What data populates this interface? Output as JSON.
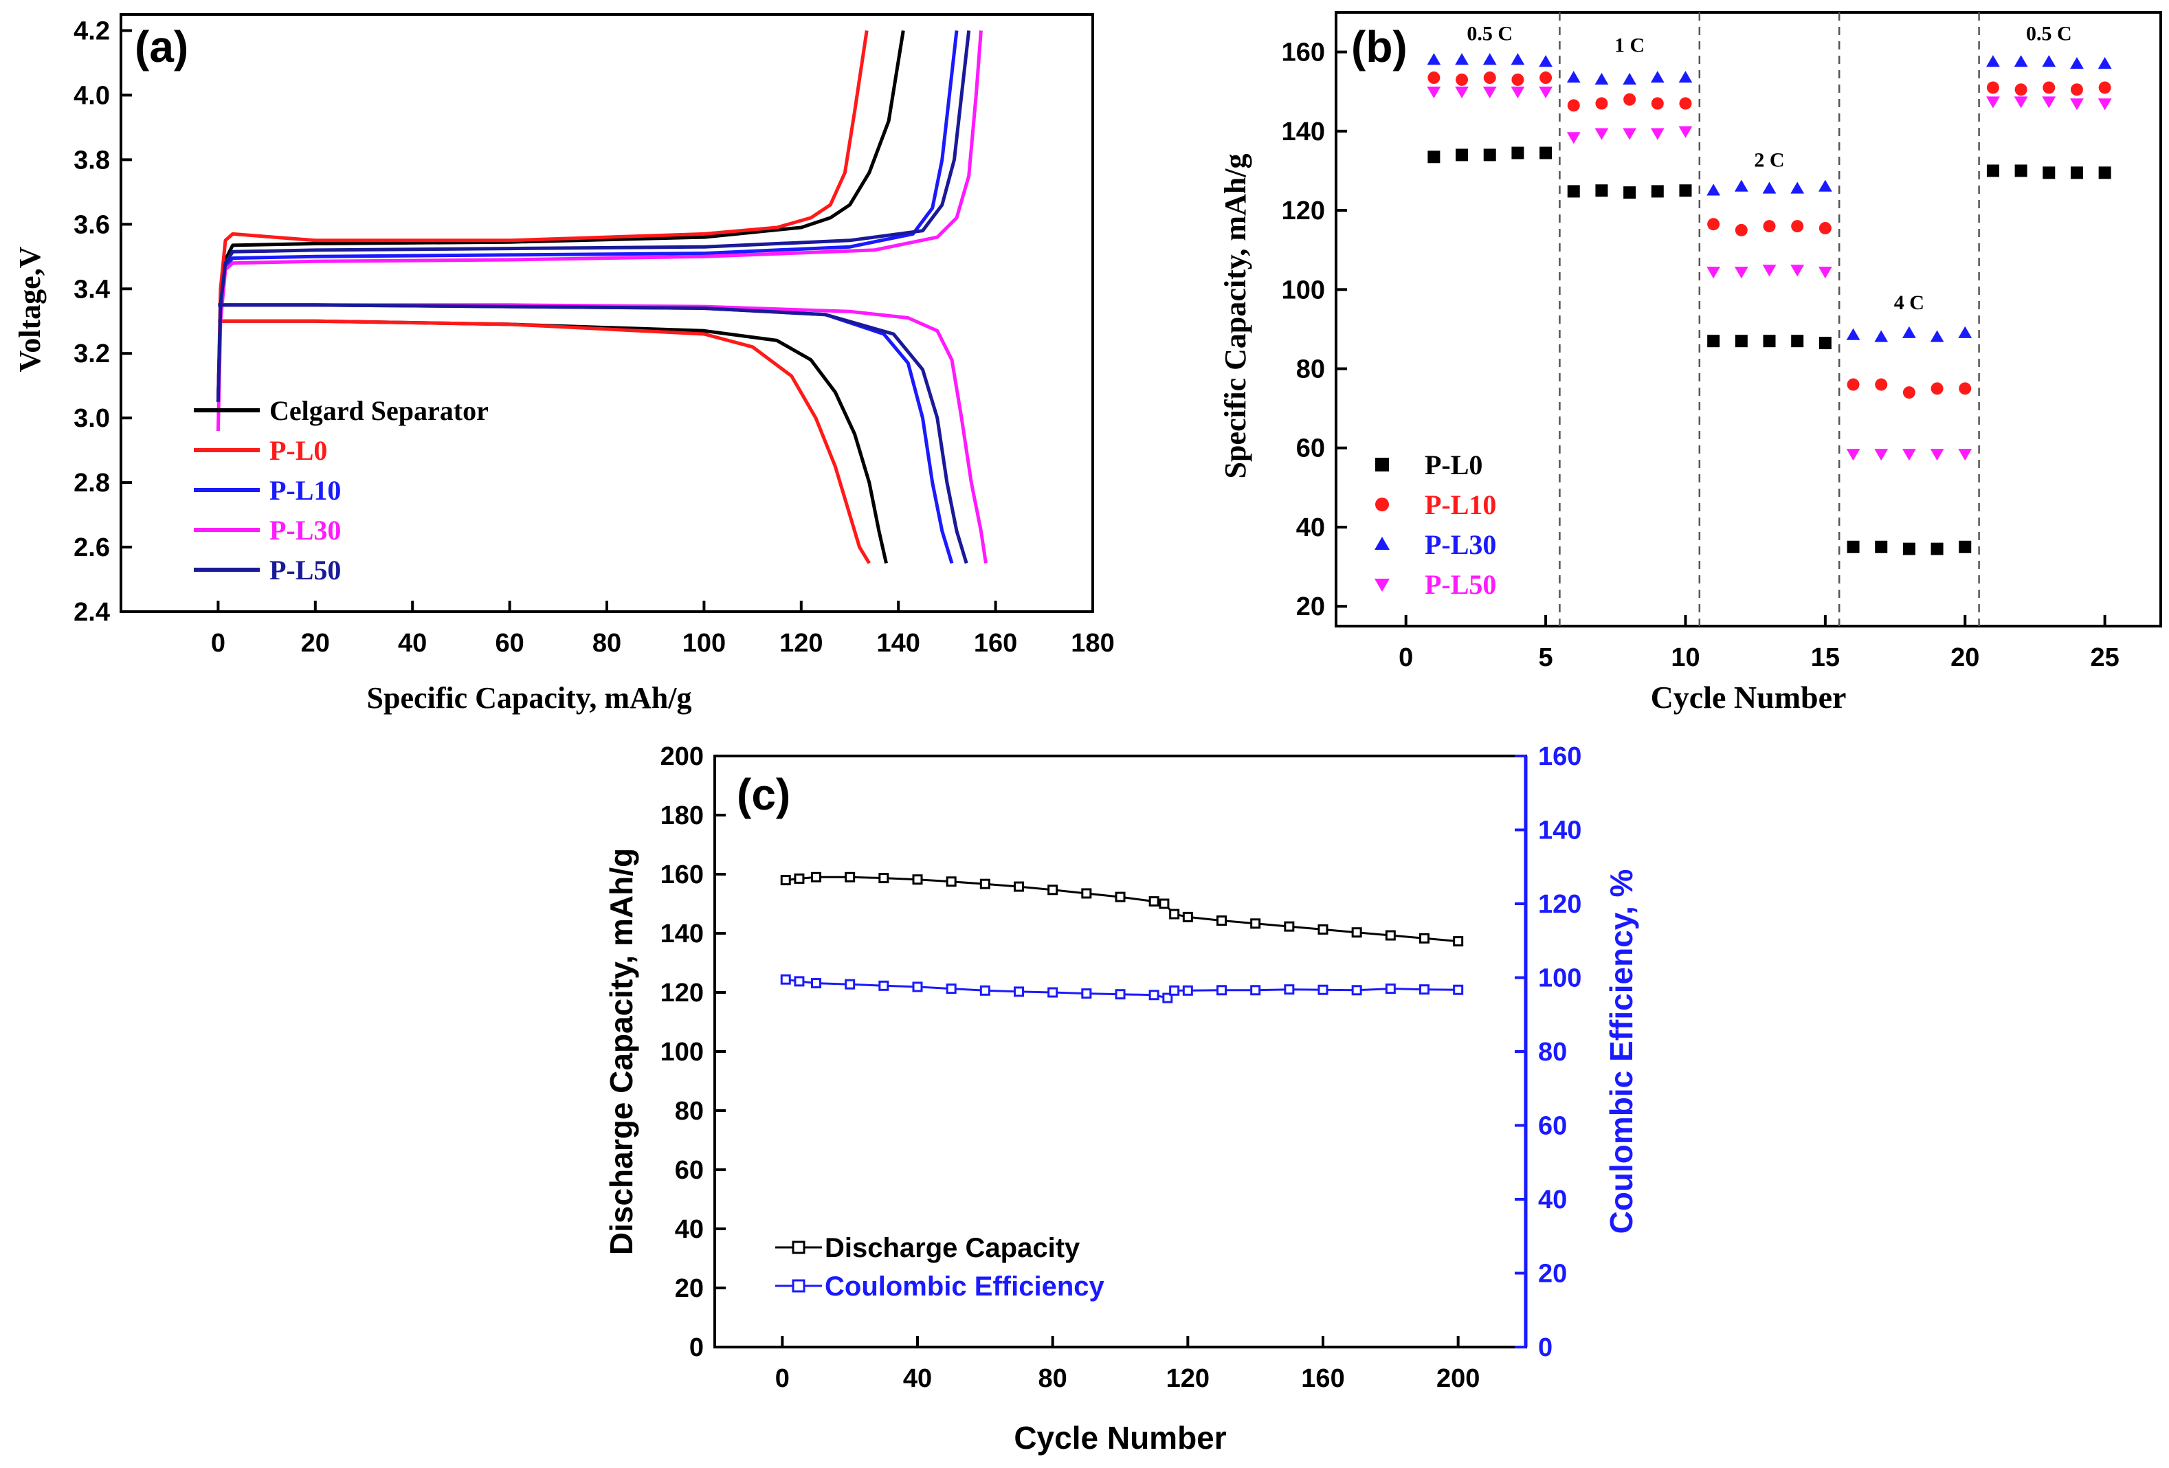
{
  "chart_data": [
    {
      "panel_label": "(a)",
      "type": "line",
      "xlabel": "Specific Capacity, mAh/g",
      "ylabel": "Voltage,V",
      "xlim": [
        -20,
        180
      ],
      "ylim": [
        2.4,
        4.25
      ],
      "xticks": [
        0,
        20,
        40,
        60,
        80,
        100,
        120,
        140,
        160,
        180
      ],
      "yticks": [
        2.4,
        2.6,
        2.8,
        3.0,
        3.2,
        3.4,
        3.6,
        3.8,
        4.0,
        4.2
      ],
      "legend_position": "bottom-left",
      "series": [
        {
          "name": "Celgard Separator",
          "color": "#000000",
          "charge": [
            [
              0,
              3.05
            ],
            [
              0.5,
              3.35
            ],
            [
              1.5,
              3.49
            ],
            [
              3,
              3.535
            ],
            [
              20,
              3.54
            ],
            [
              60,
              3.545
            ],
            [
              100,
              3.56
            ],
            [
              120,
              3.59
            ],
            [
              126,
              3.62
            ],
            [
              130,
              3.66
            ],
            [
              134,
              3.76
            ],
            [
              138,
              3.92
            ],
            [
              141,
              4.2
            ]
          ],
          "discharge": [
            [
              0,
              3.3
            ],
            [
              20,
              3.3
            ],
            [
              60,
              3.29
            ],
            [
              100,
              3.27
            ],
            [
              115,
              3.24
            ],
            [
              122,
              3.18
            ],
            [
              127,
              3.08
            ],
            [
              131,
              2.95
            ],
            [
              134,
              2.8
            ],
            [
              136,
              2.65
            ],
            [
              137.5,
              2.55
            ]
          ]
        },
        {
          "name": "P-L0",
          "color": "#ff1a1a",
          "charge": [
            [
              0,
              3.05
            ],
            [
              0.5,
              3.4
            ],
            [
              1.5,
              3.55
            ],
            [
              3,
              3.57
            ],
            [
              20,
              3.55
            ],
            [
              60,
              3.55
            ],
            [
              100,
              3.57
            ],
            [
              115,
              3.59
            ],
            [
              122,
              3.62
            ],
            [
              126,
              3.66
            ],
            [
              129,
              3.76
            ],
            [
              131,
              3.95
            ],
            [
              133.5,
              4.2
            ]
          ],
          "discharge": [
            [
              0,
              3.3
            ],
            [
              20,
              3.3
            ],
            [
              60,
              3.29
            ],
            [
              100,
              3.26
            ],
            [
              110,
              3.22
            ],
            [
              118,
              3.13
            ],
            [
              123,
              3.0
            ],
            [
              127,
              2.85
            ],
            [
              130,
              2.7
            ],
            [
              132,
              2.6
            ],
            [
              134,
              2.55
            ]
          ]
        },
        {
          "name": "P-L10",
          "color": "#1a1aff",
          "charge": [
            [
              0,
              3.05
            ],
            [
              0.5,
              3.35
            ],
            [
              1.5,
              3.47
            ],
            [
              3,
              3.495
            ],
            [
              20,
              3.5
            ],
            [
              60,
              3.505
            ],
            [
              100,
              3.51
            ],
            [
              130,
              3.53
            ],
            [
              143,
              3.57
            ],
            [
              147,
              3.65
            ],
            [
              149,
              3.8
            ],
            [
              150.5,
              4.0
            ],
            [
              152,
              4.2
            ]
          ],
          "discharge": [
            [
              0,
              3.35
            ],
            [
              20,
              3.35
            ],
            [
              60,
              3.345
            ],
            [
              100,
              3.34
            ],
            [
              125,
              3.32
            ],
            [
              137,
              3.26
            ],
            [
              142,
              3.17
            ],
            [
              145,
              3.0
            ],
            [
              147,
              2.8
            ],
            [
              149,
              2.65
            ],
            [
              151,
              2.55
            ]
          ]
        },
        {
          "name": "P-L30",
          "color": "#ff1aff",
          "charge": [
            [
              0,
              2.96
            ],
            [
              0.5,
              3.3
            ],
            [
              1.5,
              3.46
            ],
            [
              3,
              3.48
            ],
            [
              20,
              3.485
            ],
            [
              60,
              3.49
            ],
            [
              100,
              3.5
            ],
            [
              135,
              3.52
            ],
            [
              148,
              3.56
            ],
            [
              152,
              3.62
            ],
            [
              154.5,
              3.75
            ],
            [
              156,
              4.0
            ],
            [
              157,
              4.2
            ]
          ],
          "discharge": [
            [
              0,
              3.35
            ],
            [
              20,
              3.35
            ],
            [
              60,
              3.35
            ],
            [
              100,
              3.345
            ],
            [
              130,
              3.33
            ],
            [
              142,
              3.31
            ],
            [
              148,
              3.27
            ],
            [
              151,
              3.18
            ],
            [
              153,
              3.0
            ],
            [
              155,
              2.8
            ],
            [
              157,
              2.65
            ],
            [
              158,
              2.55
            ]
          ]
        },
        {
          "name": "P-L50",
          "color": "#1a1a99",
          "charge": [
            [
              0,
              3.05
            ],
            [
              0.5,
              3.35
            ],
            [
              1.5,
              3.48
            ],
            [
              3,
              3.515
            ],
            [
              20,
              3.52
            ],
            [
              60,
              3.525
            ],
            [
              100,
              3.53
            ],
            [
              130,
              3.55
            ],
            [
              145,
              3.58
            ],
            [
              149,
              3.66
            ],
            [
              151.5,
              3.8
            ],
            [
              153,
              4.0
            ],
            [
              154.5,
              4.2
            ]
          ],
          "discharge": [
            [
              0,
              3.35
            ],
            [
              20,
              3.35
            ],
            [
              60,
              3.345
            ],
            [
              100,
              3.34
            ],
            [
              125,
              3.32
            ],
            [
              139,
              3.26
            ],
            [
              145,
              3.15
            ],
            [
              148,
              3.0
            ],
            [
              150,
              2.8
            ],
            [
              152,
              2.65
            ],
            [
              154,
              2.55
            ]
          ]
        }
      ]
    },
    {
      "panel_label": "(b)",
      "type": "scatter",
      "xlabel": "Cycle Number",
      "ylabel": "Specific Capacity, mAh/g",
      "xlim": [
        -2.5,
        27
      ],
      "ylim": [
        15,
        170
      ],
      "xticks": [
        0,
        5,
        10,
        15,
        20,
        25
      ],
      "yticks": [
        20,
        40,
        60,
        80,
        100,
        120,
        140,
        160
      ],
      "dividers": [
        5.5,
        10.5,
        15.5,
        20.5
      ],
      "rate_labels": [
        {
          "text": "0.5 C",
          "x": 3,
          "y": 163
        },
        {
          "text": "1 C",
          "x": 8,
          "y": 160
        },
        {
          "text": "2 C",
          "x": 13,
          "y": 131
        },
        {
          "text": "4 C",
          "x": 18,
          "y": 95
        },
        {
          "text": "0.5 C",
          "x": 23,
          "y": 163
        }
      ],
      "legend_position": "bottom-left",
      "x": [
        1,
        2,
        3,
        4,
        5,
        6,
        7,
        8,
        9,
        10,
        11,
        12,
        13,
        14,
        15,
        16,
        17,
        18,
        19,
        20,
        21,
        22,
        23,
        24,
        25
      ],
      "series": [
        {
          "name": "P-L0",
          "color": "#000000",
          "marker": "square",
          "values": [
            133.5,
            134,
            134,
            134.5,
            134.5,
            124.8,
            125,
            124.5,
            124.8,
            125,
            87,
            87,
            87,
            87,
            86.5,
            35,
            35,
            34.5,
            34.5,
            35,
            130,
            130,
            129.5,
            129.5,
            129.5
          ]
        },
        {
          "name": "P-L10",
          "color": "#ff1a1a",
          "marker": "circle",
          "values": [
            153.5,
            153,
            153.5,
            153,
            153.5,
            146.5,
            147,
            148,
            147,
            147,
            116.5,
            115,
            116,
            116,
            115.5,
            76,
            76,
            74,
            75,
            75,
            151,
            150.5,
            151,
            150.5,
            151
          ]
        },
        {
          "name": "P-L30",
          "color": "#1a1aff",
          "marker": "triangle-up",
          "values": [
            158,
            158,
            158,
            158,
            157.5,
            153.5,
            153,
            153,
            153.5,
            153.5,
            125,
            126,
            125.5,
            125.5,
            126,
            88.5,
            88,
            89,
            88,
            89,
            157.5,
            157.5,
            157.5,
            157,
            157
          ]
        },
        {
          "name": "P-L50",
          "color": "#ff1aff",
          "marker": "triangle-down",
          "values": [
            150,
            150,
            150,
            150,
            150,
            138.5,
            139.5,
            139.5,
            139.5,
            140,
            104.5,
            104.5,
            105,
            105,
            104.5,
            58.5,
            58.5,
            58.5,
            58.5,
            58.5,
            147.5,
            147.5,
            147.5,
            147,
            147
          ]
        }
      ]
    },
    {
      "panel_label": "(c)",
      "type": "line",
      "xlabel": "Cycle Number",
      "ylabel_left": "Discharge Capacity, mAh/g",
      "ylabel_right": "Coulombic Efficiency, %",
      "xlim": [
        -20,
        220
      ],
      "ylim_left": [
        0,
        200
      ],
      "ylim_right": [
        0,
        160
      ],
      "xticks": [
        0,
        40,
        80,
        120,
        160,
        200
      ],
      "yticks_left": [
        0,
        20,
        40,
        60,
        80,
        100,
        120,
        140,
        160,
        180,
        200
      ],
      "yticks_right": [
        0,
        20,
        40,
        60,
        80,
        100,
        120,
        140,
        160
      ],
      "legend_position": "bottom-left",
      "series": [
        {
          "name": "Discharge Capacity",
          "color": "#000000",
          "axis": "left",
          "marker": "open-square",
          "points": [
            [
              1,
              158
            ],
            [
              5,
              158.5
            ],
            [
              10,
              159
            ],
            [
              20,
              159
            ],
            [
              30,
              158.7
            ],
            [
              40,
              158.2
            ],
            [
              50,
              157.5
            ],
            [
              60,
              156.7
            ],
            [
              70,
              155.8
            ],
            [
              80,
              154.7
            ],
            [
              90,
              153.5
            ],
            [
              100,
              152.3
            ],
            [
              110,
              150.8
            ],
            [
              113,
              150
            ],
            [
              116,
              146.5
            ],
            [
              120,
              145.5
            ],
            [
              130,
              144.3
            ],
            [
              140,
              143.3
            ],
            [
              150,
              142.3
            ],
            [
              160,
              141.3
            ],
            [
              170,
              140.3
            ],
            [
              180,
              139.3
            ],
            [
              190,
              138.3
            ],
            [
              200,
              137.3
            ]
          ]
        },
        {
          "name": "Coulombic Efficiency",
          "color": "#1a1aff",
          "axis": "right",
          "marker": "open-square",
          "points": [
            [
              1,
              99.5
            ],
            [
              5,
              99
            ],
            [
              10,
              98.5
            ],
            [
              20,
              98.2
            ],
            [
              30,
              97.8
            ],
            [
              40,
              97.5
            ],
            [
              50,
              97
            ],
            [
              60,
              96.5
            ],
            [
              70,
              96.2
            ],
            [
              80,
              96
            ],
            [
              90,
              95.7
            ],
            [
              100,
              95.5
            ],
            [
              110,
              95.3
            ],
            [
              114,
              94.5
            ],
            [
              116,
              96.5
            ],
            [
              120,
              96.5
            ],
            [
              130,
              96.6
            ],
            [
              140,
              96.6
            ],
            [
              150,
              96.8
            ],
            [
              160,
              96.7
            ],
            [
              170,
              96.6
            ],
            [
              180,
              97
            ],
            [
              190,
              96.8
            ],
            [
              200,
              96.7
            ]
          ]
        }
      ]
    }
  ]
}
